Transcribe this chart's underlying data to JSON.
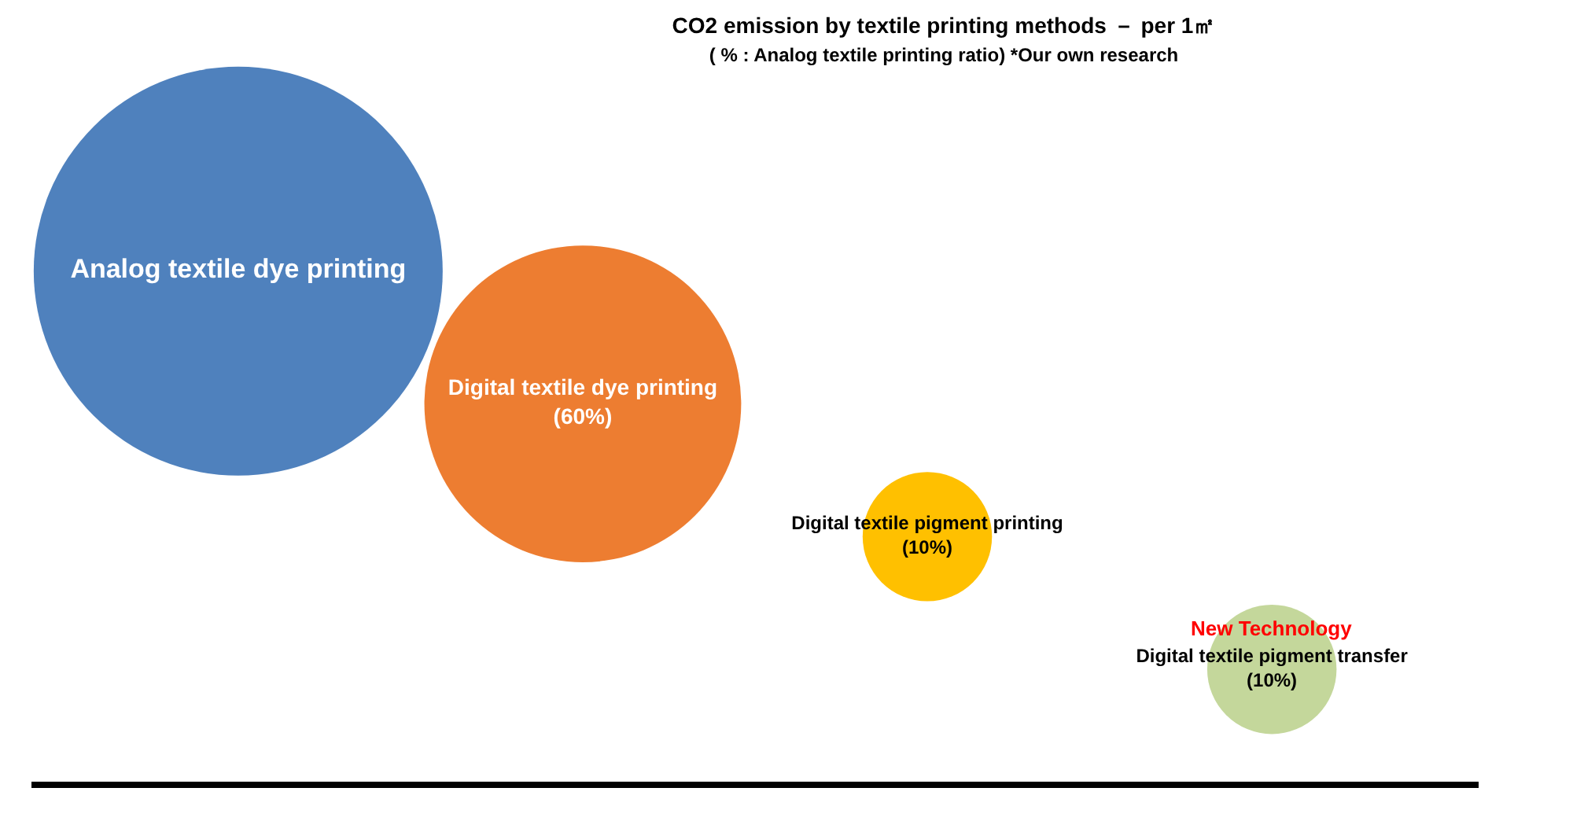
{
  "chart_data": {
    "type": "other",
    "title": "CO2 emission by textile printing methods － per 1㎡",
    "subtitle": "( % : Analog textile printing ratio) *Our own research",
    "categories": [
      "Analog textile dye printing",
      "Digital textile dye printing",
      "Digital textile pigment printing",
      "Digital textile pigment transfer"
    ],
    "values": [
      null,
      60,
      10,
      10
    ],
    "value_labels": [
      null,
      "(60%)",
      "(10%)",
      "(10%)"
    ],
    "colors": [
      "#4f81bd",
      "#ed7d31",
      "#ffc000",
      "#c4d79b"
    ],
    "annotations": [
      "New Technology"
    ]
  }
}
